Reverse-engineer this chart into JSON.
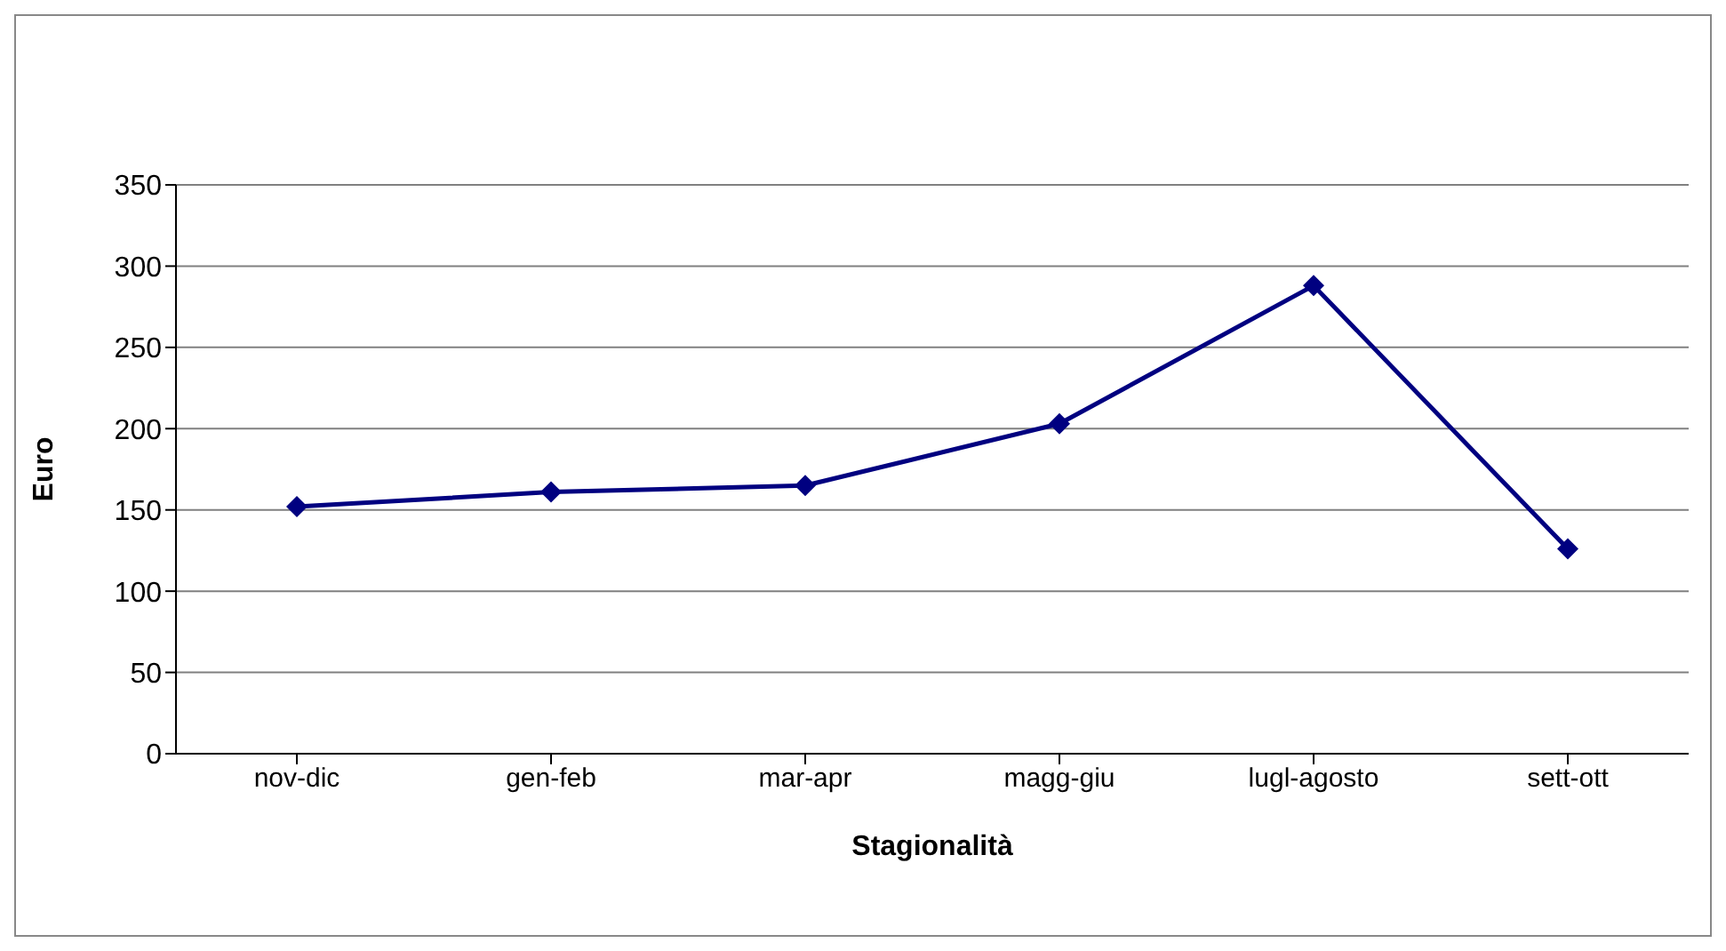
{
  "chart_data": {
    "type": "line",
    "xlabel": "Stagionalità",
    "ylabel": "Euro",
    "categories": [
      "nov-dic",
      "gen-feb",
      "mar-apr",
      "magg-giu",
      "lugl-agosto",
      "sett-ott"
    ],
    "series": [
      {
        "color": "#000080",
        "values": [
          152,
          161,
          165,
          203,
          288,
          126
        ]
      }
    ],
    "ylim": [
      0,
      350
    ],
    "yticks": [
      0,
      50,
      100,
      150,
      200,
      250,
      300,
      350
    ],
    "grid": "y",
    "marker": "diamond",
    "line_style": "solid"
  }
}
